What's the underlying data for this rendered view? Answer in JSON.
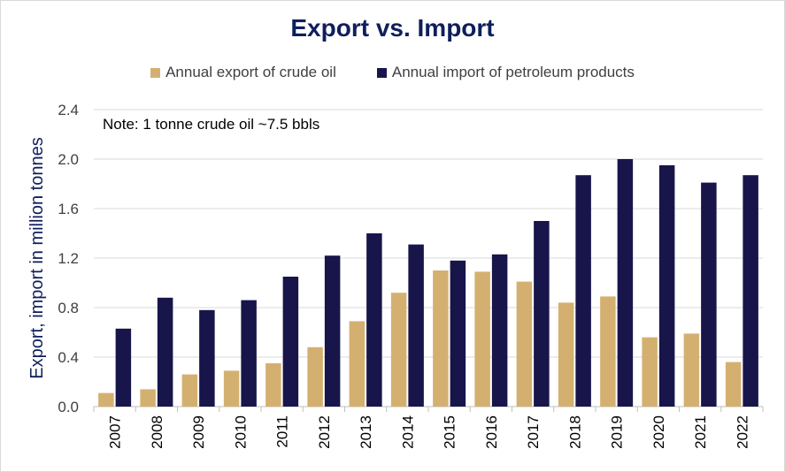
{
  "chart_data": {
    "type": "bar",
    "title": "Export vs. Import",
    "note": "Note: 1 tonne crude oil ~7.5 bbls",
    "xlabel": "",
    "ylabel": "Export, import in million tonnes",
    "ylim": [
      0,
      2.4
    ],
    "yticks": [
      "0.0",
      "0.4",
      "0.8",
      "1.2",
      "1.6",
      "2.0",
      "2.4"
    ],
    "grid": true,
    "legend_position": "top",
    "categories": [
      "2007",
      "2008",
      "2009",
      "2010",
      "2011",
      "2012",
      "2013",
      "2014",
      "2015",
      "2016",
      "2017",
      "2018",
      "2019",
      "2020",
      "2021",
      "2022"
    ],
    "series": [
      {
        "name": "Annual export of crude oil",
        "color": "#d4b070",
        "values": [
          0.11,
          0.14,
          0.26,
          0.29,
          0.35,
          0.48,
          0.69,
          0.92,
          1.1,
          1.09,
          1.01,
          0.84,
          0.89,
          0.56,
          0.59,
          0.36
        ]
      },
      {
        "name": "Annual import of petroleum products",
        "color": "#17154a",
        "values": [
          0.63,
          0.88,
          0.78,
          0.86,
          1.05,
          1.22,
          1.4,
          1.31,
          1.18,
          1.23,
          1.5,
          1.87,
          2.0,
          1.95,
          1.81,
          1.87
        ]
      }
    ]
  }
}
